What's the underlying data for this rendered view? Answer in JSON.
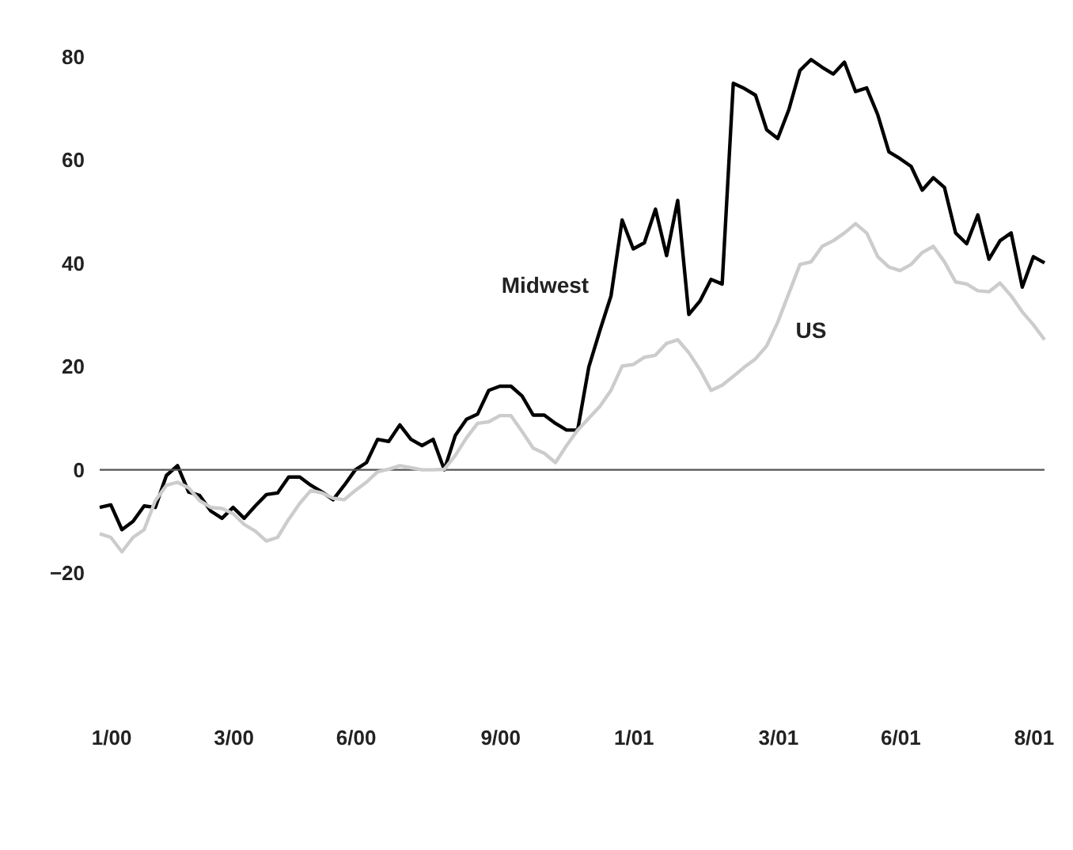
{
  "chart_data": {
    "type": "line",
    "categories": [
      null,
      "1/00",
      null,
      null,
      null,
      null,
      null,
      null,
      null,
      null,
      null,
      null,
      "3/00",
      null,
      null,
      null,
      null,
      null,
      null,
      null,
      null,
      null,
      null,
      "6/00",
      null,
      null,
      null,
      null,
      null,
      null,
      null,
      null,
      null,
      null,
      null,
      null,
      "9/00",
      null,
      null,
      null,
      null,
      null,
      null,
      null,
      null,
      null,
      null,
      null,
      "1/01",
      null,
      null,
      null,
      null,
      null,
      null,
      null,
      null,
      null,
      null,
      null,
      null,
      "3/01",
      null,
      null,
      null,
      null,
      null,
      null,
      null,
      null,
      null,
      null,
      "6/01",
      null,
      null,
      null,
      null,
      null,
      null,
      null,
      null,
      null,
      null,
      null,
      "8/01",
      null
    ],
    "series": [
      {
        "name": "Midwest",
        "color": "#000000",
        "values": [
          -7.3,
          -6.8,
          -11.6,
          -10,
          -7,
          -7.3,
          -1.1,
          0.8,
          -4.3,
          -5,
          -8,
          -9.4,
          -7.3,
          -9.4,
          -7,
          -4.8,
          -4.5,
          -1.4,
          -1.4,
          -3,
          -4.3,
          -5.8,
          -3,
          0,
          1.4,
          5.9,
          5.5,
          8.7,
          5.9,
          4.7,
          5.9,
          0,
          6.7,
          9.8,
          10.8,
          15.4,
          16.2,
          16.2,
          14.3,
          10.6,
          10.6,
          9,
          7.7,
          7.7,
          19.9,
          27,
          33.7,
          48.4,
          42.8,
          44,
          50.5,
          41.5,
          52.2,
          30.1,
          32.7,
          36.9,
          36,
          74.9,
          73.9,
          72.6,
          65.9,
          64.2,
          69.8,
          77.4,
          79.5,
          78,
          76.7,
          79,
          73.3,
          74,
          68.8,
          61.6,
          60.3,
          58.8,
          54.2,
          56.6,
          54.7,
          45.9,
          43.8,
          49.4,
          40.8,
          44.4,
          45.9,
          35.4,
          41.3,
          40.1
        ]
      },
      {
        "name": "US",
        "color": "#cccccc",
        "values": [
          -12.4,
          -13.1,
          -15.9,
          -13.1,
          -11.6,
          -6,
          -3,
          -2.4,
          -3.5,
          -6,
          -7.3,
          -7.5,
          -8.5,
          -10.6,
          -11.9,
          -13.8,
          -13.1,
          -9.6,
          -6.5,
          -4,
          -4.5,
          -5.5,
          -5.8,
          -4,
          -2.4,
          -0.4,
          0.1,
          0.8,
          0.4,
          0,
          0,
          0.1,
          2.8,
          6.2,
          9,
          9.3,
          10.5,
          10.5,
          7.4,
          4.2,
          3.2,
          1.4,
          4.7,
          7.7,
          10,
          12.3,
          15.4,
          20.1,
          20.4,
          21.8,
          22.2,
          24.5,
          25.2,
          22.7,
          19.4,
          15.4,
          16.4,
          18.1,
          19.9,
          21.5,
          24,
          28.6,
          34.2,
          39.8,
          40.3,
          43.3,
          44.4,
          45.9,
          47.7,
          45.9,
          41.3,
          39.3,
          38.6,
          39.8,
          42.1,
          43.3,
          40.3,
          36.4,
          36,
          34.7,
          34.5,
          36.2,
          33.7,
          30.6,
          28.1,
          25.2
        ]
      }
    ],
    "ylim": [
      -20,
      80
    ],
    "yticks": [
      -20,
      0,
      20,
      40,
      60,
      80
    ],
    "ref_lines": [
      {
        "axis": "y",
        "value": 0,
        "color": "#555555"
      }
    ],
    "grid": false
  }
}
